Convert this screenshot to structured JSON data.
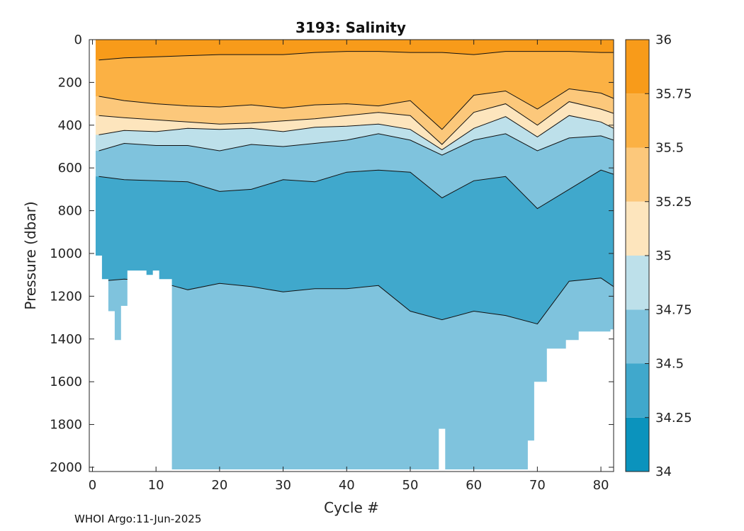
{
  "chart_data": {
    "type": "heatmap",
    "title": "3193:  Salinity",
    "xlabel": "Cycle #",
    "ylabel": "Pressure (dbar)",
    "xlim": [
      -0.5,
      82
    ],
    "ylim": [
      0,
      2020
    ],
    "y_reversed": true,
    "xticks": [
      0,
      10,
      20,
      30,
      40,
      50,
      60,
      70,
      80
    ],
    "yticks": [
      0,
      200,
      400,
      600,
      800,
      1000,
      1200,
      1400,
      1600,
      1800,
      2000
    ],
    "colorbar": {
      "min": 34,
      "max": 36,
      "levels": [
        34,
        34.25,
        34.5,
        34.75,
        35,
        35.25,
        35.5,
        35.75,
        36
      ],
      "tick_labels": [
        "34",
        "34.25",
        "34.5",
        "34.75",
        "35",
        "35.25",
        "35.5",
        "35.75",
        "36"
      ],
      "colors": [
        "#0b93bd",
        "#40a8cc",
        "#7fc3dd",
        "#bde0ea",
        "#fde5bd",
        "#fcc87b",
        "#fbb144",
        "#f89b1a"
      ]
    },
    "contour_levels_shown": [
      34.5,
      34.75,
      35,
      35.25,
      35.5,
      35.75
    ],
    "contour_depths": {
      "cycles": [
        1,
        5,
        10,
        15,
        20,
        25,
        30,
        35,
        40,
        45,
        50,
        55,
        60,
        65,
        70,
        75,
        80,
        82
      ],
      "s35_75": [
        95,
        85,
        80,
        75,
        70,
        70,
        70,
        60,
        55,
        55,
        60,
        60,
        70,
        55,
        55,
        55,
        60,
        60
      ],
      "s35_5": [
        265,
        285,
        300,
        310,
        315,
        305,
        320,
        305,
        300,
        310,
        285,
        420,
        260,
        240,
        325,
        230,
        250,
        275
      ],
      "s35_25": [
        355,
        365,
        375,
        385,
        395,
        390,
        380,
        370,
        355,
        340,
        355,
        490,
        340,
        300,
        400,
        290,
        325,
        345
      ],
      "s35": [
        445,
        425,
        430,
        415,
        420,
        415,
        430,
        410,
        405,
        395,
        420,
        515,
        415,
        360,
        455,
        355,
        385,
        415
      ],
      "s34_75": [
        520,
        485,
        495,
        495,
        520,
        490,
        500,
        485,
        470,
        440,
        470,
        540,
        470,
        440,
        520,
        460,
        450,
        470
      ],
      "s34_5": [
        640,
        655,
        660,
        665,
        710,
        700,
        655,
        665,
        620,
        610,
        620,
        740,
        660,
        640,
        790,
        700,
        610,
        630
      ],
      "s34_25": [
        1130,
        1120,
        1130,
        1170,
        1140,
        1155,
        1180,
        1165,
        1165,
        1150,
        1270,
        1310,
        1270,
        1290,
        1330,
        1130,
        1115,
        1155
      ]
    },
    "profile_max_pressure": {
      "cycles": [
        1,
        2,
        3,
        4,
        5,
        6,
        9,
        10,
        11,
        12,
        13,
        54,
        55,
        56,
        68,
        69,
        70,
        72,
        75,
        77,
        79,
        82
      ],
      "pressure": [
        1010,
        1120,
        1270,
        1405,
        1245,
        1080,
        1100,
        1080,
        1120,
        1120,
        2010,
        2010,
        1820,
        2010,
        2010,
        1875,
        1600,
        1445,
        1405,
        1365,
        1365,
        1355
      ]
    }
  },
  "footer": {
    "credit": "WHOI Argo:11-Jun-2025"
  }
}
